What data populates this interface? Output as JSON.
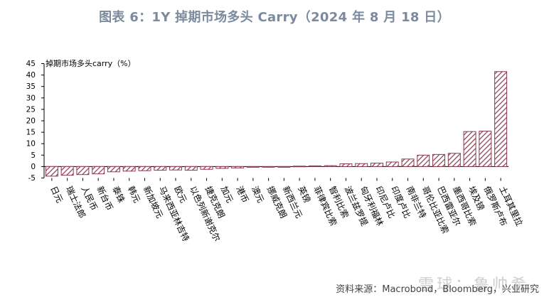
{
  "title": "图表 6：1Y 掉期市场多头 Carry（2024 年 8 月 18 日）",
  "source": "资料来源：Macrobond，Bloomberg，兴业研究",
  "watermark": "雪球：鲁帅希",
  "colors": {
    "bar_stroke": "#8b3a4f",
    "bar_hatch": "#8b3a4f",
    "bar_fill": "#ffffff",
    "title": "#7c8a9e",
    "axis": "#000000"
  },
  "chart_data": {
    "type": "bar",
    "ylabel": "掉期市场多头carry（%）",
    "ylim": [
      -5,
      45
    ],
    "yticks": [
      -5,
      0,
      5,
      10,
      15,
      20,
      25,
      30,
      35,
      40,
      45
    ],
    "categories": [
      "日元",
      "瑞士法郎",
      "人民币",
      "新台币",
      "泰铢",
      "韩元",
      "新加坡元",
      "马来西亚林吉特",
      "欧元",
      "以色列新谢克尔",
      "捷克克朗",
      "加元",
      "港币",
      "澳元",
      "挪威克朗",
      "新西兰元",
      "英镑",
      "菲律宾比索",
      "智利比索",
      "波兰兹罗提",
      "匈牙利福林",
      "印尼卢比",
      "印度卢比",
      "南非兰特",
      "哥伦比亚比索",
      "巴西雷亚尔",
      "墨西哥比索",
      "埃及镑",
      "俄罗斯卢布",
      "土耳其里拉"
    ],
    "values": [
      -4.2,
      -3.8,
      -3.5,
      -3.2,
      -2.3,
      -2.0,
      -1.8,
      -1.6,
      -1.5,
      -1.6,
      -1.2,
      -0.8,
      -0.6,
      -0.3,
      -0.2,
      -0.1,
      0.2,
      0.3,
      0.4,
      1.2,
      1.3,
      1.5,
      2.0,
      3.3,
      5.0,
      5.3,
      5.8,
      15.3,
      15.5,
      41.5
    ],
    "grid": false
  }
}
